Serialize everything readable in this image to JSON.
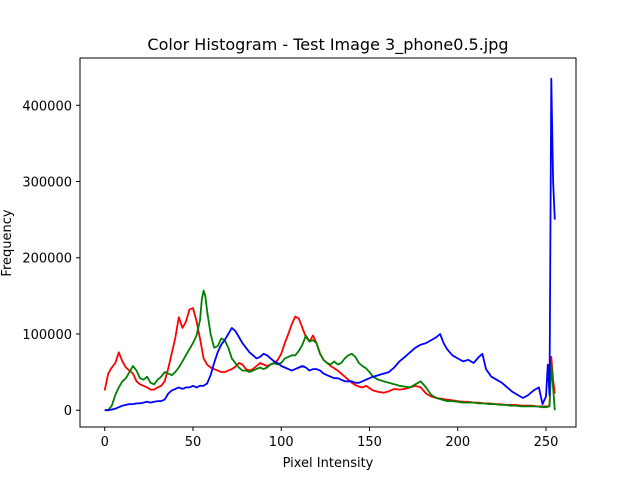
{
  "chart_data": {
    "type": "line",
    "title": "Color Histogram - Test Image 3_phone0.5.jpg",
    "xlabel": "Pixel Intensity",
    "ylabel": "Frequency",
    "xlim": [
      -14,
      267
    ],
    "ylim": [
      -22000,
      462000
    ],
    "xticks": [
      0,
      50,
      100,
      150,
      200,
      250
    ],
    "xtick_labels": [
      "0",
      "50",
      "100",
      "150",
      "200",
      "250"
    ],
    "yticks": [
      0,
      100000,
      200000,
      300000,
      400000
    ],
    "ytick_labels": [
      "0",
      "100000",
      "200000",
      "300000",
      "400000"
    ],
    "grid": false,
    "legend": false,
    "series": [
      {
        "color": "#ff0000",
        "x": [
          0,
          2,
          4,
          6,
          8,
          10,
          12,
          14,
          16,
          18,
          20,
          22,
          24,
          26,
          28,
          30,
          32,
          34,
          36,
          38,
          40,
          42,
          44,
          46,
          48,
          50,
          52,
          54,
          56,
          58,
          60,
          62,
          64,
          66,
          68,
          70,
          72,
          74,
          76,
          78,
          80,
          82,
          84,
          86,
          88,
          90,
          92,
          94,
          96,
          98,
          100,
          102,
          104,
          106,
          108,
          110,
          112,
          114,
          116,
          118,
          120,
          122,
          124,
          126,
          128,
          130,
          132,
          134,
          136,
          138,
          140,
          142,
          144,
          146,
          148,
          150,
          152,
          155,
          158,
          161,
          164,
          167,
          170,
          173,
          176,
          179,
          182,
          185,
          188,
          191,
          194,
          197,
          200,
          203,
          206,
          209,
          212,
          215,
          218,
          221,
          224,
          227,
          230,
          233,
          236,
          239,
          242,
          245,
          248,
          250,
          252,
          253,
          254,
          255
        ],
        "values": [
          26000,
          48000,
          56000,
          62000,
          76000,
          64000,
          56000,
          52000,
          48000,
          38000,
          34000,
          32000,
          30000,
          27000,
          27000,
          30000,
          32000,
          38000,
          55000,
          75000,
          95000,
          122000,
          108000,
          116000,
          132000,
          134000,
          117000,
          94000,
          68000,
          60000,
          56000,
          54000,
          52000,
          50000,
          50000,
          52000,
          54000,
          57000,
          62000,
          60000,
          54000,
          52000,
          54000,
          58000,
          62000,
          60000,
          58000,
          60000,
          62000,
          66000,
          74000,
          88000,
          100000,
          113000,
          123000,
          120000,
          108000,
          96000,
          90000,
          98000,
          88000,
          74000,
          66000,
          62000,
          58000,
          55000,
          52000,
          48000,
          44000,
          40000,
          36000,
          33000,
          31000,
          30000,
          32000,
          29000,
          26000,
          24000,
          23000,
          25000,
          28000,
          27000,
          28000,
          30000,
          32000,
          30000,
          22000,
          18000,
          16000,
          15000,
          14000,
          13000,
          12000,
          11000,
          11000,
          10000,
          10000,
          9000,
          9000,
          8000,
          8000,
          7000,
          7000,
          7000,
          6000,
          6000,
          6000,
          5000,
          5000,
          5000,
          6000,
          70000,
          40000,
          22000
        ]
      },
      {
        "color": "#008000",
        "x": [
          0,
          2,
          4,
          6,
          8,
          10,
          12,
          14,
          16,
          18,
          20,
          22,
          24,
          26,
          28,
          30,
          32,
          34,
          36,
          38,
          40,
          42,
          44,
          46,
          48,
          50,
          52,
          54,
          55,
          56,
          57,
          58,
          60,
          62,
          64,
          66,
          68,
          70,
          72,
          74,
          76,
          78,
          80,
          82,
          84,
          86,
          88,
          90,
          92,
          94,
          96,
          98,
          100,
          102,
          104,
          106,
          108,
          110,
          112,
          114,
          116,
          118,
          120,
          122,
          124,
          126,
          128,
          130,
          132,
          134,
          136,
          138,
          140,
          142,
          144,
          146,
          148,
          150,
          152,
          155,
          158,
          161,
          164,
          167,
          170,
          173,
          176,
          179,
          182,
          185,
          188,
          191,
          194,
          197,
          200,
          203,
          206,
          209,
          212,
          215,
          218,
          221,
          224,
          227,
          230,
          233,
          236,
          239,
          242,
          245,
          248,
          250,
          252,
          253,
          254,
          255
        ],
        "values": [
          0,
          0,
          6000,
          20000,
          30000,
          38000,
          42000,
          50000,
          58000,
          52000,
          42000,
          40000,
          44000,
          36000,
          34000,
          40000,
          44000,
          50000,
          48000,
          46000,
          50000,
          56000,
          64000,
          72000,
          80000,
          88000,
          98000,
          118000,
          145000,
          157000,
          150000,
          130000,
          100000,
          82000,
          84000,
          94000,
          92000,
          82000,
          68000,
          62000,
          56000,
          52000,
          52000,
          50000,
          52000,
          54000,
          56000,
          54000,
          56000,
          60000,
          62000,
          60000,
          62000,
          68000,
          70000,
          72000,
          72000,
          78000,
          86000,
          98000,
          90000,
          92000,
          88000,
          74000,
          66000,
          62000,
          60000,
          64000,
          60000,
          62000,
          68000,
          72000,
          74000,
          70000,
          62000,
          58000,
          55000,
          50000,
          44000,
          40000,
          38000,
          36000,
          34000,
          32000,
          31000,
          30000,
          34000,
          38000,
          30000,
          20000,
          16000,
          14000,
          12000,
          12000,
          11000,
          10000,
          10000,
          10000,
          9000,
          9000,
          8000,
          8000,
          7000,
          7000,
          6000,
          6000,
          5000,
          5000,
          5000,
          5000,
          4000,
          4000,
          5000,
          60000,
          30000,
          0
        ]
      },
      {
        "color": "#0000ff",
        "x": [
          0,
          2,
          4,
          6,
          8,
          10,
          12,
          14,
          16,
          18,
          20,
          22,
          24,
          26,
          28,
          30,
          32,
          34,
          36,
          38,
          40,
          42,
          44,
          46,
          48,
          50,
          52,
          54,
          56,
          58,
          60,
          62,
          64,
          66,
          68,
          70,
          72,
          74,
          76,
          78,
          80,
          82,
          84,
          86,
          88,
          90,
          92,
          94,
          96,
          98,
          100,
          102,
          104,
          106,
          108,
          110,
          112,
          114,
          116,
          118,
          120,
          122,
          124,
          126,
          128,
          130,
          132,
          134,
          136,
          138,
          140,
          142,
          144,
          146,
          148,
          150,
          152,
          155,
          158,
          161,
          164,
          167,
          170,
          173,
          176,
          179,
          182,
          185,
          188,
          190,
          192,
          194,
          197,
          200,
          203,
          206,
          209,
          212,
          214,
          216,
          219,
          222,
          225,
          228,
          231,
          234,
          237,
          240,
          243,
          246,
          248,
          250,
          251,
          252,
          253,
          254,
          255
        ],
        "values": [
          0,
          0,
          1000,
          2000,
          4000,
          6000,
          7000,
          8000,
          8000,
          9000,
          9000,
          10000,
          11000,
          10000,
          11000,
          12000,
          12000,
          14000,
          22000,
          26000,
          28000,
          30000,
          28000,
          30000,
          30000,
          32000,
          30000,
          32000,
          32000,
          35000,
          46000,
          62000,
          76000,
          86000,
          92000,
          100000,
          108000,
          104000,
          96000,
          88000,
          82000,
          76000,
          72000,
          68000,
          70000,
          74000,
          72000,
          68000,
          64000,
          62000,
          58000,
          56000,
          54000,
          52000,
          54000,
          56000,
          58000,
          56000,
          52000,
          54000,
          54000,
          52000,
          48000,
          46000,
          44000,
          42000,
          42000,
          40000,
          38000,
          38000,
          38000,
          36000,
          36000,
          38000,
          40000,
          42000,
          44000,
          46000,
          48000,
          50000,
          56000,
          64000,
          70000,
          76000,
          82000,
          86000,
          88000,
          92000,
          96000,
          100000,
          88000,
          80000,
          72000,
          68000,
          64000,
          66000,
          62000,
          70000,
          74000,
          54000,
          44000,
          40000,
          36000,
          30000,
          24000,
          20000,
          16000,
          20000,
          26000,
          30000,
          8000,
          18000,
          60000,
          20000,
          435000,
          300000,
          250000
        ]
      }
    ]
  }
}
